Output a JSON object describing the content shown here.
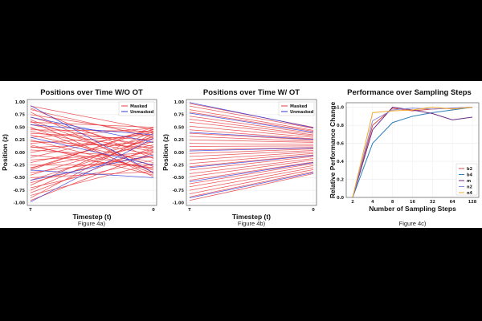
{
  "colors": {
    "masked": "#e8383d",
    "unmasked": "#2f36d6",
    "b2": "#d64848",
    "b4": "#2e7fb6",
    "m": "#6a2b86",
    "n2": "#8c8fd6",
    "n4": "#f3a92b"
  },
  "chart_data": [
    {
      "type": "line",
      "title": "Positions over Time W/O OT",
      "xlabel": "Timestep (t)",
      "ylabel": "Position (z)",
      "caption": "Figure 4a)",
      "xticks": [
        "T",
        "0"
      ],
      "yticks": [
        "1.00",
        "0.75",
        "0.50",
        "0.25",
        "0.00",
        "-0.25",
        "-0.50",
        "-0.75",
        "-1.00"
      ],
      "ylim": [
        -1.05,
        1.05
      ],
      "legend": {
        "position": "top-right",
        "entries": [
          "Masked",
          "Unmasked"
        ]
      },
      "series": [
        {
          "name": "Masked",
          "segments": [
            [
              0.92,
              0.45
            ],
            [
              0.88,
              -0.12
            ],
            [
              0.85,
              0.3
            ],
            [
              0.8,
              -0.4
            ],
            [
              0.75,
              0.38
            ],
            [
              0.7,
              0.05
            ],
            [
              0.65,
              -0.28
            ],
            [
              0.6,
              0.5
            ],
            [
              0.55,
              0.12
            ],
            [
              0.5,
              -0.42
            ],
            [
              0.45,
              0.42
            ],
            [
              0.42,
              -0.05
            ],
            [
              0.38,
              0.25
            ],
            [
              0.35,
              -0.2
            ],
            [
              0.3,
              0.48
            ],
            [
              0.25,
              -0.35
            ],
            [
              0.22,
              0.1
            ],
            [
              0.18,
              0.35
            ],
            [
              0.15,
              -0.45
            ],
            [
              0.1,
              0.2
            ],
            [
              0.05,
              -0.1
            ],
            [
              0.0,
              0.4
            ],
            [
              -0.05,
              -0.3
            ],
            [
              -0.1,
              0.45
            ],
            [
              -0.15,
              0.0
            ],
            [
              -0.2,
              0.3
            ],
            [
              -0.25,
              -0.25
            ],
            [
              -0.3,
              0.15
            ],
            [
              -0.35,
              0.5
            ],
            [
              -0.4,
              -0.08
            ],
            [
              -0.45,
              0.28
            ],
            [
              -0.5,
              -0.38
            ],
            [
              -0.55,
              0.22
            ],
            [
              -0.6,
              0.05
            ],
            [
              -0.65,
              0.42
            ],
            [
              -0.7,
              -0.15
            ],
            [
              -0.75,
              0.33
            ],
            [
              -0.8,
              0.1
            ],
            [
              -0.85,
              -0.22
            ],
            [
              -0.9,
              0.38
            ],
            [
              -0.95,
              0.0
            ],
            [
              0.62,
              -0.48
            ],
            [
              0.48,
              0.02
            ],
            [
              -0.32,
              0.46
            ],
            [
              0.12,
              -0.32
            ]
          ]
        },
        {
          "name": "Unmasked",
          "segments": [
            [
              0.93,
              -0.4
            ],
            [
              0.55,
              0.35
            ],
            [
              0.3,
              -0.25
            ],
            [
              -0.35,
              -0.5
            ],
            [
              -0.98,
              0.28
            ],
            [
              0.7,
              0.2
            ],
            [
              -0.55,
              -0.05
            ]
          ]
        }
      ]
    },
    {
      "type": "line",
      "title": "Positions over Time W/ OT",
      "xlabel": "Timestep (t)",
      "ylabel": "Position (z)",
      "caption": "Figure 4b)",
      "xticks": [
        "T",
        "0"
      ],
      "yticks": [
        "1.00",
        "0.75",
        "0.50",
        "0.25",
        "0.00",
        "-0.25",
        "-0.50",
        "-0.75",
        "-1.00"
      ],
      "ylim": [
        -1.05,
        1.05
      ],
      "legend": {
        "position": "top-right",
        "entries": [
          "Masked",
          "Unmasked"
        ]
      },
      "series": [
        {
          "name": "Masked",
          "segments": [
            [
              0.97,
              0.5
            ],
            [
              0.92,
              0.48
            ],
            [
              0.85,
              0.44
            ],
            [
              0.8,
              0.42
            ],
            [
              0.72,
              0.38
            ],
            [
              0.66,
              0.35
            ],
            [
              0.6,
              0.33
            ],
            [
              0.52,
              0.3
            ],
            [
              0.45,
              0.27
            ],
            [
              0.38,
              0.25
            ],
            [
              0.32,
              0.22
            ],
            [
              0.25,
              0.2
            ],
            [
              0.18,
              0.16
            ],
            [
              0.12,
              0.13
            ],
            [
              0.05,
              0.1
            ],
            [
              -0.02,
              0.07
            ],
            [
              -0.08,
              0.04
            ],
            [
              -0.15,
              0.01
            ],
            [
              -0.22,
              -0.02
            ],
            [
              -0.28,
              -0.05
            ],
            [
              -0.35,
              -0.08
            ],
            [
              -0.42,
              -0.12
            ],
            [
              -0.48,
              -0.15
            ],
            [
              -0.55,
              -0.19
            ],
            [
              -0.62,
              -0.22
            ],
            [
              -0.68,
              -0.26
            ],
            [
              -0.75,
              -0.3
            ],
            [
              -0.82,
              -0.34
            ],
            [
              -0.88,
              -0.38
            ],
            [
              -0.95,
              -0.42
            ]
          ]
        },
        {
          "name": "Unmasked",
          "segments": [
            [
              0.99,
              0.49
            ],
            [
              0.78,
              0.4
            ],
            [
              0.4,
              0.26
            ],
            [
              0.03,
              0.09
            ],
            [
              -0.3,
              -0.06
            ],
            [
              -0.58,
              -0.2
            ],
            [
              -0.9,
              -0.4
            ]
          ]
        }
      ]
    },
    {
      "type": "line",
      "title": "Performance over Sampling Steps",
      "xlabel": "Number of Sampling Steps",
      "ylabel": "Relative Performance Change",
      "caption": "Figure 4c)",
      "categories": [
        "2",
        "4",
        "8",
        "16",
        "32",
        "64",
        "128"
      ],
      "yticks": [
        "0.0",
        "0.2",
        "0.4",
        "0.6",
        "0.8",
        "1.0"
      ],
      "ylim": [
        0,
        1.05
      ],
      "legend": {
        "position": "bottom-right",
        "entries": [
          "b2",
          "b4",
          "m",
          "n2",
          "n4"
        ]
      },
      "series": [
        {
          "name": "b2",
          "values": [
            0.0,
            0.8,
            0.99,
            0.96,
            0.98,
            0.99,
            1.0
          ]
        },
        {
          "name": "b4",
          "values": [
            0.0,
            0.6,
            0.83,
            0.9,
            0.94,
            0.97,
            1.0
          ]
        },
        {
          "name": "m",
          "values": [
            0.0,
            0.75,
            1.0,
            0.97,
            0.93,
            0.86,
            0.89
          ]
        },
        {
          "name": "n2",
          "values": [
            0.0,
            0.85,
            0.97,
            0.99,
            0.98,
            0.99,
            1.0
          ]
        },
        {
          "name": "n4",
          "values": [
            0.0,
            0.94,
            0.96,
            0.97,
            1.0,
            0.98,
            1.0
          ]
        }
      ]
    }
  ]
}
